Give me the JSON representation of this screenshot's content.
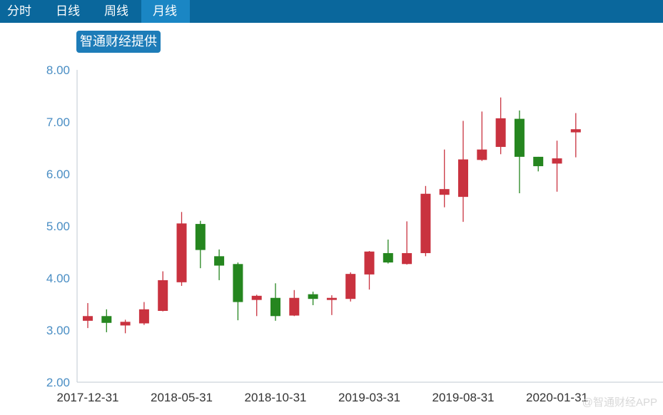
{
  "tabs": [
    {
      "label": "分时"
    },
    {
      "label": "日线"
    },
    {
      "label": "周线"
    },
    {
      "label": "月线"
    }
  ],
  "active_tab": "月线",
  "source_badge": "智通财经提供",
  "watermark": "@智通财经APP",
  "colors": {
    "up": "#c9323f",
    "down": "#25861f",
    "axis": "#bfc8d2",
    "tabbar": "#0a679c",
    "tab_active": "#1a86c4"
  },
  "chart_data": {
    "type": "candlestick",
    "ylim": [
      2.0,
      8.0
    ],
    "yticks": [
      "2.00",
      "3.00",
      "4.00",
      "5.00",
      "6.00",
      "7.00",
      "8.00"
    ],
    "xticks": [
      {
        "label": "2017-12-31",
        "index": 0
      },
      {
        "label": "2018-05-31",
        "index": 5
      },
      {
        "label": "2018-10-31",
        "index": 10
      },
      {
        "label": "2019-03-31",
        "index": 15
      },
      {
        "label": "2019-08-31",
        "index": 20
      },
      {
        "label": "2020-01-31",
        "index": 25
      }
    ],
    "candles": [
      {
        "date": "2017-12-31",
        "open": 3.18,
        "high": 3.52,
        "low": 3.04,
        "close": 3.27
      },
      {
        "date": "2018-01-31",
        "open": 3.27,
        "high": 3.4,
        "low": 2.96,
        "close": 3.14
      },
      {
        "date": "2018-02-28",
        "open": 3.09,
        "high": 3.2,
        "low": 2.94,
        "close": 3.16
      },
      {
        "date": "2018-03-31",
        "open": 3.13,
        "high": 3.54,
        "low": 3.1,
        "close": 3.4
      },
      {
        "date": "2018-04-30",
        "open": 3.37,
        "high": 4.13,
        "low": 3.36,
        "close": 3.96
      },
      {
        "date": "2018-05-31",
        "open": 3.92,
        "high": 5.27,
        "low": 3.85,
        "close": 5.05
      },
      {
        "date": "2018-06-30",
        "open": 5.04,
        "high": 5.1,
        "low": 4.19,
        "close": 4.54
      },
      {
        "date": "2018-07-31",
        "open": 4.42,
        "high": 4.55,
        "low": 3.96,
        "close": 4.24
      },
      {
        "date": "2018-08-31",
        "open": 4.27,
        "high": 4.3,
        "low": 3.19,
        "close": 3.54
      },
      {
        "date": "2018-09-30",
        "open": 3.58,
        "high": 3.68,
        "low": 3.27,
        "close": 3.66
      },
      {
        "date": "2018-10-31",
        "open": 3.62,
        "high": 3.9,
        "low": 3.18,
        "close": 3.27
      },
      {
        "date": "2018-11-30",
        "open": 3.28,
        "high": 3.77,
        "low": 3.27,
        "close": 3.62
      },
      {
        "date": "2018-12-31",
        "open": 3.69,
        "high": 3.74,
        "low": 3.48,
        "close": 3.6
      },
      {
        "date": "2019-01-31",
        "open": 3.58,
        "high": 3.67,
        "low": 3.29,
        "close": 3.62
      },
      {
        "date": "2019-02-28",
        "open": 3.6,
        "high": 4.11,
        "low": 3.55,
        "close": 4.08
      },
      {
        "date": "2019-03-31",
        "open": 4.07,
        "high": 4.52,
        "low": 3.78,
        "close": 4.51
      },
      {
        "date": "2019-04-30",
        "open": 4.48,
        "high": 4.74,
        "low": 4.28,
        "close": 4.3
      },
      {
        "date": "2019-05-31",
        "open": 4.27,
        "high": 5.09,
        "low": 4.26,
        "close": 4.48
      },
      {
        "date": "2019-06-30",
        "open": 4.48,
        "high": 5.77,
        "low": 4.42,
        "close": 5.62
      },
      {
        "date": "2019-07-31",
        "open": 5.6,
        "high": 6.47,
        "low": 5.36,
        "close": 5.71
      },
      {
        "date": "2019-08-31",
        "open": 5.56,
        "high": 7.02,
        "low": 5.08,
        "close": 6.28
      },
      {
        "date": "2019-09-30",
        "open": 6.27,
        "high": 7.2,
        "low": 6.25,
        "close": 6.47
      },
      {
        "date": "2019-10-31",
        "open": 6.52,
        "high": 7.47,
        "low": 6.38,
        "close": 7.07
      },
      {
        "date": "2019-11-30",
        "open": 7.06,
        "high": 7.22,
        "low": 5.63,
        "close": 6.33
      },
      {
        "date": "2019-12-31",
        "open": 6.33,
        "high": 6.33,
        "low": 6.05,
        "close": 6.15
      },
      {
        "date": "2020-01-31",
        "open": 6.2,
        "high": 6.64,
        "low": 5.66,
        "close": 6.3
      },
      {
        "date": "2020-02-29",
        "open": 6.8,
        "high": 7.17,
        "low": 6.32,
        "close": 6.86
      }
    ]
  }
}
